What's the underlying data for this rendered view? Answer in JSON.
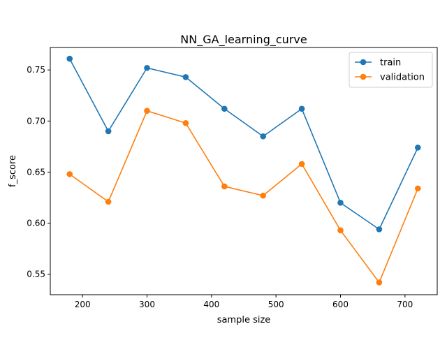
{
  "chart_data": {
    "type": "line",
    "title": "NN_GA_learning_curve",
    "xlabel": "sample size",
    "ylabel": "f_score",
    "x": [
      180,
      240,
      300,
      360,
      420,
      480,
      540,
      600,
      660,
      720
    ],
    "xlim": [
      150,
      750
    ],
    "ylim": [
      0.53,
      0.772
    ],
    "xticks": [
      200,
      300,
      400,
      500,
      600,
      700
    ],
    "yticks": [
      0.55,
      0.6,
      0.65,
      0.7,
      0.75
    ],
    "ytick_labels": [
      "0.55",
      "0.60",
      "0.65",
      "0.70",
      "0.75"
    ],
    "grid": false,
    "legend_position": "upper right",
    "series": [
      {
        "name": "train",
        "color": "#1f77b4",
        "marker": "circle",
        "values": [
          0.761,
          0.69,
          0.752,
          0.743,
          0.712,
          0.685,
          0.712,
          0.62,
          0.594,
          0.674
        ]
      },
      {
        "name": "validation",
        "color": "#ff7f0e",
        "marker": "circle",
        "values": [
          0.648,
          0.621,
          0.71,
          0.698,
          0.636,
          0.627,
          0.658,
          0.593,
          0.542,
          0.634
        ]
      }
    ]
  }
}
